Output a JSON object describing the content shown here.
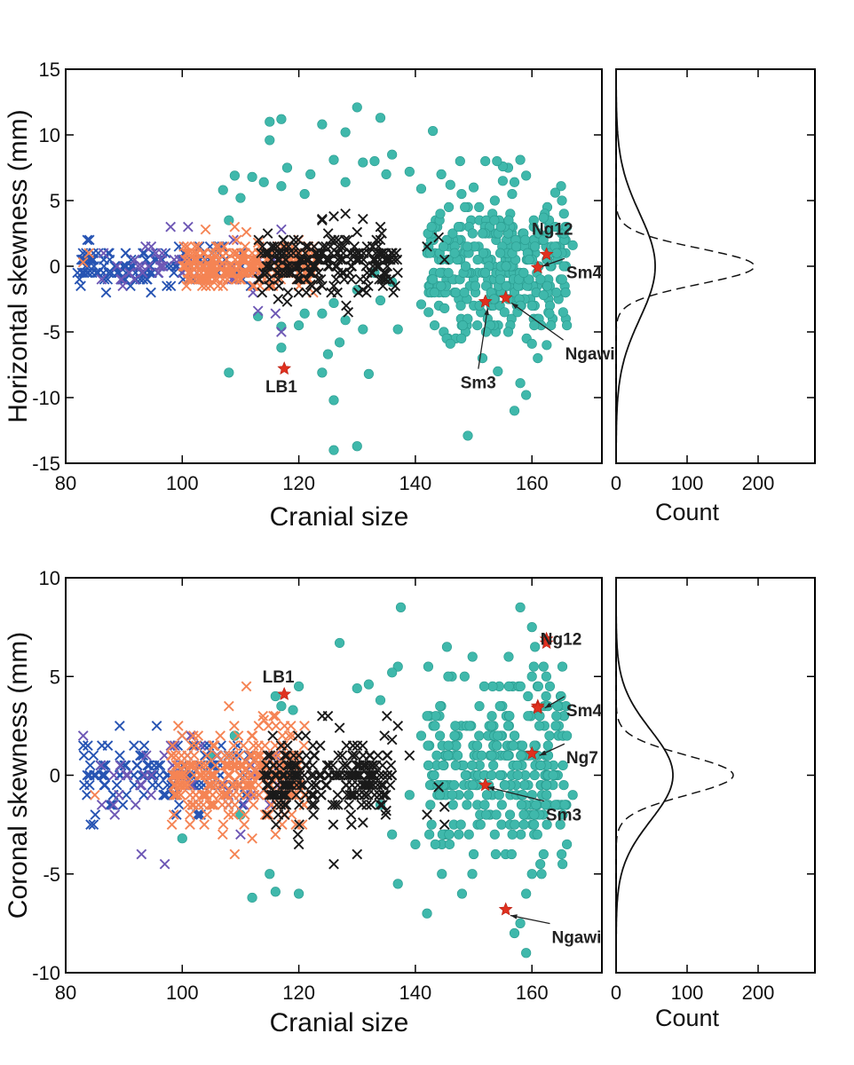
{
  "chart_data": [
    {
      "id": "top",
      "type": "scatter",
      "xlabel": "Cranial size",
      "ylabel": "Horizontal skewness (mm)",
      "xlim": [
        80,
        172
      ],
      "ylim": [
        -15,
        15
      ],
      "xticks": [
        80,
        100,
        120,
        140,
        160
      ],
      "yticks": [
        -15,
        -10,
        -5,
        0,
        5,
        10,
        15
      ],
      "colors": {
        "teal": "#3fb8ab",
        "black": "#1a1a1a",
        "orange": "#f58454",
        "blue": "#2754b3",
        "purple": "#6e58b5",
        "star": "#e0301e"
      },
      "series": [
        {
          "marker": "x",
          "color": "blue",
          "cluster": {
            "xmin": 82,
            "xmax": 112,
            "center": 0,
            "spread": 0.75,
            "extent": 1.8,
            "n": 160,
            "seed": 11
          },
          "points": []
        },
        {
          "marker": "x",
          "color": "purple",
          "cluster": {
            "xmin": 86,
            "xmax": 118,
            "center": 0,
            "spread": 1.0,
            "extent": 3.0,
            "n": 45,
            "seed": 12
          },
          "points": [
            [
              117,
              -5.0
            ],
            [
              116,
              -3.6
            ],
            [
              113,
              -3.4
            ],
            [
              98,
              3.0
            ],
            [
              101,
              3.0
            ],
            [
              117,
              2.8
            ]
          ]
        },
        {
          "marker": "x",
          "color": "orange",
          "cluster": {
            "xmin": 100,
            "xmax": 123,
            "center": 0,
            "spread": 0.8,
            "extent": 2.4,
            "n": 280,
            "seed": 13
          },
          "points": [
            [
              83,
              0.3
            ],
            [
              84,
              1.0
            ],
            [
              104,
              2.8
            ],
            [
              109,
              3.0
            ],
            [
              111,
              2.6
            ],
            [
              113,
              1.8
            ]
          ]
        },
        {
          "marker": "x",
          "color": "black",
          "cluster": {
            "xmin": 113,
            "xmax": 137,
            "center": 0.3,
            "spread": 1.1,
            "extent": 3.8,
            "n": 210,
            "seed": 14
          },
          "points": [
            [
              128,
              4.0
            ],
            [
              126,
              3.8
            ],
            [
              124,
              3.6
            ],
            [
              131,
              3.6
            ],
            [
              134,
              3.0
            ],
            [
              120,
              -1.0
            ],
            [
              123,
              -1.8
            ],
            [
              126,
              -1.5
            ],
            [
              131,
              -1.8
            ],
            [
              135,
              -0.6
            ],
            [
              144,
              2.2
            ],
            [
              145,
              0.5
            ],
            [
              142,
              1.5
            ],
            [
              122,
              -1.4
            ],
            [
              118,
              -2.7
            ],
            [
              130,
              2.6
            ]
          ]
        },
        {
          "marker": "dot",
          "color": "teal",
          "cluster": {
            "xmin": 142,
            "xmax": 166,
            "center": 0,
            "spread": 2.5,
            "extent": 8.5,
            "n": 330,
            "seed": 15
          },
          "points": [
            [
              115,
              11.0
            ],
            [
              117,
              11.2
            ],
            [
              115,
              9.6
            ],
            [
              130,
              12.1
            ],
            [
              128,
              10.2
            ],
            [
              134,
              11.3
            ],
            [
              124,
              10.8
            ],
            [
              143,
              10.3
            ],
            [
              136,
              8.5
            ],
            [
              126,
              8.1
            ],
            [
              131,
              7.9
            ],
            [
              133,
              8.0
            ],
            [
              118,
              7.5
            ],
            [
              122,
              7.0
            ],
            [
              121,
              5.5
            ],
            [
              109,
              6.9
            ],
            [
              112,
              6.8
            ],
            [
              107,
              5.8
            ],
            [
              110,
              5.2
            ],
            [
              114,
              6.4
            ],
            [
              117,
              6.1
            ],
            [
              108,
              3.5
            ],
            [
              128,
              6.4
            ],
            [
              135,
              7.0
            ],
            [
              139,
              7.2
            ],
            [
              146,
              6.2
            ],
            [
              141,
              5.9
            ],
            [
              121,
              -3.6
            ],
            [
              124,
              -3.6
            ],
            [
              126,
              -2.8
            ],
            [
              128,
              -4.1
            ],
            [
              131,
              -4.8
            ],
            [
              130,
              -1.8
            ],
            [
              134,
              -2.6
            ],
            [
              136,
              -1.2
            ],
            [
              117,
              -6.2
            ],
            [
              117,
              -4.6
            ],
            [
              120,
              -4.5
            ],
            [
              125,
              -6.7
            ],
            [
              127,
              -5.8
            ],
            [
              124,
              -8.1
            ],
            [
              132,
              -8.2
            ],
            [
              126,
              -10.2
            ],
            [
              126,
              -14.0
            ],
            [
              130,
              -13.7
            ],
            [
              113,
              -3.8
            ],
            [
              108,
              -8.1
            ],
            [
              137,
              -4.8
            ],
            [
              141,
              -2.9
            ],
            [
              149,
              -12.9
            ],
            [
              158,
              -8.9
            ],
            [
              159,
              -9.8
            ],
            [
              157,
              -11.0
            ],
            [
              161,
              -7.0
            ],
            [
              160,
              -5.9
            ],
            [
              163,
              -3.6
            ],
            [
              166,
              -4.5
            ],
            [
              162,
              -2.2
            ],
            [
              165,
              6.1
            ],
            [
              164,
              5.6
            ],
            [
              162,
              3.7
            ],
            [
              166,
              3.0
            ],
            [
              167,
              1.6
            ],
            [
              164,
              3.0
            ],
            [
              146,
              -5.9
            ],
            [
              145,
              -3.2
            ],
            [
              158,
              8.1
            ],
            [
              157,
              6.4
            ],
            [
              155,
              7.6
            ],
            [
              154,
              8.0
            ],
            [
              159,
              6.9
            ],
            [
              150,
              6.0
            ],
            [
              152,
              8.0
            ],
            [
              155,
              6.5
            ],
            [
              133,
              -0.5
            ]
          ]
        },
        {
          "marker": "star",
          "color": "star",
          "cluster": null,
          "points": [
            [
              117.5,
              -7.8
            ],
            [
              152,
              -2.7
            ],
            [
              155.5,
              -2.4
            ],
            [
              161,
              -0.1
            ],
            [
              162.5,
              0.9
            ]
          ]
        }
      ],
      "annotations": [
        {
          "label": "Ng12",
          "x": 163.5,
          "y": 2.4,
          "arrow_to": null
        },
        {
          "label": "Sm4",
          "x": 166.5,
          "y": -0.9,
          "arrow_to": [
            161.8,
            0.0
          ]
        },
        {
          "label": "Ngawi",
          "x": 166.3,
          "y": -7.1,
          "arrow_to": [
            156.5,
            -2.8
          ]
        },
        {
          "label": "Sm3",
          "x": 150.8,
          "y": -9.3,
          "arrow_to": [
            152.4,
            -3.2
          ]
        },
        {
          "label": "LB1",
          "x": 117.0,
          "y": -9.6,
          "arrow_to": null
        }
      ],
      "marginal": {
        "xlabel": "Count",
        "xlim": [
          0,
          280
        ],
        "xticks": [
          0,
          100,
          200
        ],
        "curves": [
          {
            "style": "solid",
            "mu": 0,
            "sigma": 4.0,
            "peak": 55
          },
          {
            "style": "dashed",
            "mu": 0,
            "sigma": 1.35,
            "peak": 195
          }
        ]
      }
    },
    {
      "id": "bottom",
      "type": "scatter",
      "xlabel": "Cranial size",
      "ylabel": "Coronal skewness (mm)",
      "xlim": [
        80,
        172
      ],
      "ylim": [
        -10,
        10
      ],
      "xticks": [
        80,
        100,
        120,
        140,
        160
      ],
      "yticks": [
        -10,
        -5,
        0,
        5,
        10
      ],
      "colors": {
        "teal": "#3fb8ab",
        "black": "#1a1a1a",
        "orange": "#f58454",
        "blue": "#2754b3",
        "purple": "#6e58b5",
        "star": "#e0301e"
      },
      "series": [
        {
          "marker": "x",
          "color": "blue",
          "cluster": {
            "xmin": 83,
            "xmax": 112,
            "center": 0,
            "spread": 1.0,
            "extent": 2.5,
            "n": 150,
            "seed": 21
          },
          "points": []
        },
        {
          "marker": "x",
          "color": "purple",
          "cluster": {
            "xmin": 86,
            "xmax": 118,
            "center": 0,
            "spread": 1.0,
            "extent": 2.8,
            "n": 50,
            "seed": 22
          },
          "points": [
            [
              83,
              2.0
            ],
            [
              93,
              -4.0
            ],
            [
              97,
              -4.5
            ],
            [
              110,
              -3.0
            ]
          ]
        },
        {
          "marker": "x",
          "color": "orange",
          "cluster": {
            "xmin": 98,
            "xmax": 121,
            "center": 0,
            "spread": 1.1,
            "extent": 3.2,
            "n": 290,
            "seed": 23
          },
          "points": [
            [
              85,
              -1.0
            ],
            [
              111,
              4.5
            ],
            [
              108,
              3.5
            ],
            [
              116,
              3.0
            ],
            [
              109,
              -4.0
            ],
            [
              112,
              -3.2
            ],
            [
              114,
              2.8
            ]
          ]
        },
        {
          "marker": "x",
          "color": "black",
          "cluster": {
            "xmin": 114,
            "xmax": 136,
            "center": -0.2,
            "spread": 1.0,
            "extent": 3.0,
            "n": 230,
            "seed": 24
          },
          "points": [
            [
              137,
              2.5
            ],
            [
              136,
              1.8
            ],
            [
              139,
              1.0
            ],
            [
              144,
              -0.6
            ],
            [
              145,
              -1.6
            ],
            [
              145,
              -2.5
            ],
            [
              142,
              -2.0
            ],
            [
              135,
              -1.8
            ],
            [
              131,
              -2.4
            ],
            [
              130,
              -4.0
            ],
            [
              126,
              -4.5
            ],
            [
              120,
              -3.5
            ],
            [
              124,
              3.0
            ],
            [
              125,
              3.0
            ],
            [
              127,
              2.4
            ]
          ]
        },
        {
          "marker": "dot",
          "color": "teal",
          "cluster": {
            "xmin": 142,
            "xmax": 166,
            "center": 0.3,
            "spread": 2.2,
            "extent": 7.0,
            "n": 300,
            "seed": 25
          },
          "points": [
            [
              137.5,
              8.5
            ],
            [
              127,
              6.7
            ],
            [
              137,
              5.5
            ],
            [
              136,
              5.2
            ],
            [
              120,
              4.5
            ],
            [
              116,
              4.0
            ],
            [
              117,
              3.5
            ],
            [
              119,
              3.3
            ],
            [
              132,
              4.6
            ],
            [
              134,
              3.8
            ],
            [
              130,
              4.4
            ],
            [
              158,
              8.5
            ],
            [
              160,
              7.5
            ],
            [
              156,
              6.0
            ],
            [
              162,
              5.5
            ],
            [
              160,
              5.0
            ],
            [
              165,
              4.0
            ],
            [
              166,
              2.0
            ],
            [
              163,
              2.0
            ],
            [
              167,
              -1.0
            ],
            [
              166,
              -3.5
            ],
            [
              162,
              -4.0
            ],
            [
              160,
              -5.0
            ],
            [
              159,
              -6.0
            ],
            [
              158,
              -7.5
            ],
            [
              157,
              -8.0
            ],
            [
              159,
              -9.0
            ],
            [
              150,
              -4.0
            ],
            [
              148,
              -6.0
            ],
            [
              142,
              -7.0
            ],
            [
              137,
              -5.5
            ],
            [
              134,
              -1.5
            ],
            [
              136,
              -3.0
            ],
            [
              140,
              -3.5
            ],
            [
              141,
              2.0
            ],
            [
              139,
              -1.0
            ],
            [
              112,
              -6.2
            ],
            [
              116,
              -5.9
            ],
            [
              120,
              -6.0
            ],
            [
              105,
              1.0
            ],
            [
              109,
              2.0
            ],
            [
              110,
              -2.0
            ],
            [
              115,
              -5.0
            ],
            [
              100,
              -3.2
            ]
          ]
        },
        {
          "marker": "star",
          "color": "star",
          "cluster": null,
          "points": [
            [
              117.5,
              4.1
            ],
            [
              162.5,
              6.9
            ],
            [
              162.5,
              6.7
            ],
            [
              161,
              3.5
            ],
            [
              161,
              3.4
            ],
            [
              160,
              1.1
            ],
            [
              152,
              -0.5
            ],
            [
              155.5,
              -6.8
            ]
          ]
        }
      ],
      "annotations": [
        {
          "label": "LB1",
          "x": 116.5,
          "y": 4.7,
          "arrow_to": null
        },
        {
          "label": "Ng12",
          "x": 165.0,
          "y": 6.6,
          "arrow_to": null
        },
        {
          "label": "Sm4",
          "x": 166.5,
          "y": 3.0,
          "arrow_to": [
            162.2,
            3.4
          ]
        },
        {
          "label": "Ng7",
          "x": 166.5,
          "y": 0.6,
          "arrow_to": [
            161.3,
            1.0
          ]
        },
        {
          "label": "Sm3",
          "x": 163.0,
          "y": -2.3,
          "arrow_to": [
            152.4,
            -0.6
          ]
        },
        {
          "label": "Ngawi",
          "x": 164.0,
          "y": -8.5,
          "arrow_to": [
            156.3,
            -7.1
          ]
        }
      ],
      "marginal": {
        "xlabel": "Count",
        "xlim": [
          0,
          280
        ],
        "xticks": [
          0,
          100,
          200
        ],
        "curves": [
          {
            "style": "solid",
            "mu": 0,
            "sigma": 2.3,
            "peak": 80
          },
          {
            "style": "dashed",
            "mu": 0,
            "sigma": 1.0,
            "peak": 165
          }
        ]
      }
    }
  ]
}
